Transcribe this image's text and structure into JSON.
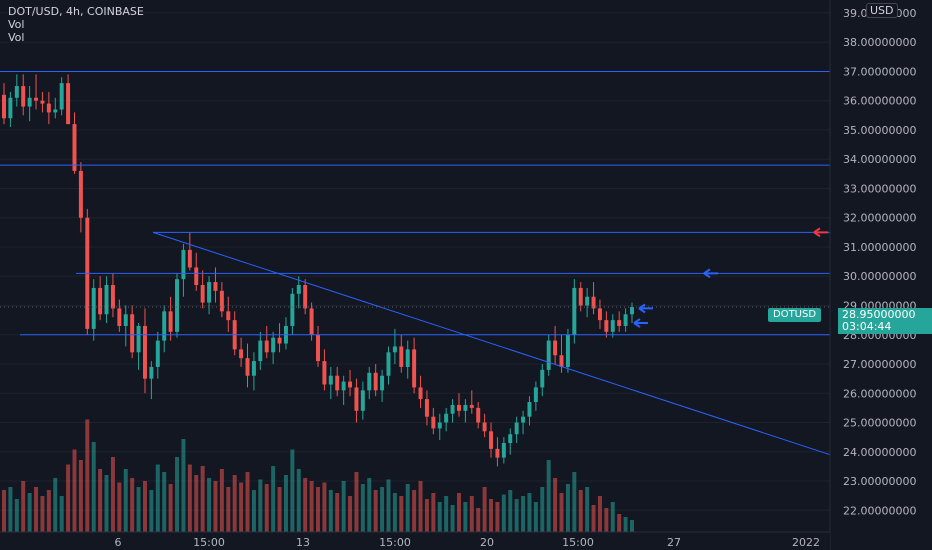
{
  "header": {
    "title": "DOT/USD, 4h, COINBASE",
    "indicator_1": "Vol",
    "indicator_2": "Vol",
    "currency_badge": "USD"
  },
  "price_label": {
    "symbol": "DOTUSD",
    "price": "28.95000000",
    "countdown": "03:04:44"
  },
  "colors": {
    "background": "#131722",
    "up": "#26a69a",
    "down": "#ef5350",
    "drawing": "#2962ff",
    "grid": "#1e222d",
    "text": "#b2b5be",
    "red_arrow": "#f23645"
  },
  "chart_data": {
    "type": "candlestick",
    "symbol": "DOT/USD",
    "interval": "4h",
    "exchange": "COINBASE",
    "y_axis": {
      "range": [
        21.6,
        39.1
      ],
      "ticks": [
        "39.00000000",
        "38.00000000",
        "37.00000000",
        "36.00000000",
        "35.00000000",
        "34.00000000",
        "33.00000000",
        "32.00000000",
        "31.00000000",
        "30.00000000",
        "29.00000000",
        "28.00000000",
        "27.00000000",
        "26.00000000",
        "25.00000000",
        "24.00000000",
        "23.00000000",
        "22.00000000"
      ]
    },
    "x_axis": {
      "ticks": [
        "6",
        "15:00",
        "13",
        "15:00",
        "20",
        "15:00",
        "27",
        "2022"
      ]
    },
    "candles": [
      [
        36.2,
        36.6,
        35.2,
        35.4
      ],
      [
        35.4,
        36.3,
        35.1,
        36.1
      ],
      [
        36.1,
        36.9,
        35.8,
        36.5
      ],
      [
        36.5,
        36.9,
        35.5,
        35.8
      ],
      [
        35.8,
        36.5,
        35.3,
        36.1
      ],
      [
        36.1,
        36.9,
        35.7,
        36.0
      ],
      [
        36.0,
        36.3,
        35.6,
        35.9
      ],
      [
        35.9,
        36.3,
        35.2,
        35.6
      ],
      [
        35.6,
        36.1,
        35.4,
        35.7
      ],
      [
        35.7,
        36.8,
        35.5,
        36.6
      ],
      [
        36.6,
        36.9,
        35.2,
        35.2
      ],
      [
        35.2,
        35.6,
        33.5,
        33.6
      ],
      [
        33.6,
        33.9,
        31.5,
        32.0
      ],
      [
        32.0,
        32.3,
        28.0,
        28.2
      ],
      [
        28.2,
        29.9,
        27.8,
        29.6
      ],
      [
        29.6,
        30.0,
        28.5,
        28.7
      ],
      [
        28.7,
        30.0,
        28.4,
        29.7
      ],
      [
        29.7,
        30.1,
        28.6,
        28.9
      ],
      [
        28.9,
        29.2,
        28.1,
        28.3
      ],
      [
        28.3,
        29.0,
        27.6,
        28.7
      ],
      [
        28.7,
        29.0,
        27.2,
        27.4
      ],
      [
        27.4,
        28.4,
        26.8,
        28.3
      ],
      [
        28.3,
        28.9,
        26.0,
        26.5
      ],
      [
        26.5,
        27.1,
        25.8,
        26.9
      ],
      [
        26.9,
        28.1,
        26.5,
        27.8
      ],
      [
        27.8,
        29.0,
        27.4,
        28.8
      ],
      [
        28.8,
        29.3,
        27.8,
        28.1
      ],
      [
        28.1,
        30.1,
        27.9,
        29.9
      ],
      [
        29.9,
        31.1,
        29.3,
        30.9
      ],
      [
        30.9,
        31.5,
        30.2,
        30.3
      ],
      [
        30.3,
        30.8,
        29.5,
        29.7
      ],
      [
        29.7,
        30.2,
        28.9,
        29.1
      ],
      [
        29.1,
        30.0,
        28.7,
        29.8
      ],
      [
        29.8,
        30.3,
        29.1,
        29.5
      ],
      [
        29.5,
        29.8,
        28.6,
        28.8
      ],
      [
        28.8,
        29.3,
        28.1,
        28.5
      ],
      [
        28.5,
        28.8,
        27.3,
        27.5
      ],
      [
        27.5,
        27.9,
        26.9,
        27.2
      ],
      [
        27.2,
        27.7,
        26.2,
        26.6
      ],
      [
        26.6,
        27.4,
        26.1,
        27.1
      ],
      [
        27.1,
        28.1,
        26.8,
        27.8
      ],
      [
        27.8,
        28.3,
        27.2,
        27.4
      ],
      [
        27.4,
        28.1,
        27.0,
        27.9
      ],
      [
        27.9,
        28.4,
        27.4,
        27.7
      ],
      [
        27.7,
        28.6,
        27.5,
        28.3
      ],
      [
        28.3,
        29.6,
        28.0,
        29.4
      ],
      [
        29.4,
        30.0,
        28.9,
        29.7
      ],
      [
        29.7,
        29.9,
        28.7,
        28.9
      ],
      [
        28.9,
        29.1,
        27.8,
        28.0
      ],
      [
        28.0,
        28.3,
        26.9,
        27.1
      ],
      [
        27.1,
        27.5,
        26.1,
        26.3
      ],
      [
        26.3,
        26.9,
        25.8,
        26.6
      ],
      [
        26.6,
        26.9,
        25.9,
        26.1
      ],
      [
        26.1,
        26.6,
        25.6,
        26.4
      ],
      [
        26.4,
        26.8,
        25.9,
        26.2
      ],
      [
        26.2,
        26.5,
        25.0,
        25.4
      ],
      [
        25.4,
        26.4,
        25.1,
        26.1
      ],
      [
        26.1,
        26.9,
        25.8,
        26.7
      ],
      [
        26.7,
        27.0,
        25.9,
        26.1
      ],
      [
        26.1,
        26.8,
        25.7,
        26.6
      ],
      [
        26.6,
        27.6,
        26.3,
        27.4
      ],
      [
        27.4,
        28.2,
        27.0,
        27.6
      ],
      [
        27.6,
        28.0,
        26.7,
        26.9
      ],
      [
        26.9,
        27.8,
        26.5,
        27.5
      ],
      [
        27.5,
        27.9,
        26.0,
        26.2
      ],
      [
        26.2,
        26.6,
        25.5,
        25.8
      ],
      [
        25.8,
        26.1,
        24.9,
        25.2
      ],
      [
        25.2,
        25.5,
        24.6,
        24.8
      ],
      [
        24.8,
        25.3,
        24.4,
        25.0
      ],
      [
        25.0,
        25.5,
        24.7,
        25.3
      ],
      [
        25.3,
        25.8,
        25.0,
        25.6
      ],
      [
        25.6,
        26.0,
        25.2,
        25.4
      ],
      [
        25.4,
        25.8,
        25.0,
        25.6
      ],
      [
        25.6,
        26.1,
        25.3,
        25.5
      ],
      [
        25.5,
        25.7,
        24.8,
        25.0
      ],
      [
        25.0,
        25.3,
        24.5,
        24.7
      ],
      [
        24.7,
        25.0,
        23.8,
        24.1
      ],
      [
        24.1,
        24.5,
        23.5,
        23.8
      ],
      [
        23.8,
        24.5,
        23.6,
        24.3
      ],
      [
        24.3,
        24.8,
        23.9,
        24.6
      ],
      [
        24.6,
        25.2,
        24.3,
        25.0
      ],
      [
        25.0,
        25.4,
        24.6,
        25.2
      ],
      [
        25.2,
        25.9,
        24.9,
        25.7
      ],
      [
        25.7,
        26.4,
        25.4,
        26.2
      ],
      [
        26.2,
        27.0,
        25.9,
        26.8
      ],
      [
        26.8,
        28.0,
        26.6,
        27.8
      ],
      [
        27.8,
        28.3,
        27.0,
        27.3
      ],
      [
        27.3,
        28.0,
        26.7,
        26.9
      ],
      [
        26.9,
        28.2,
        26.7,
        28.0
      ],
      [
        28.0,
        29.9,
        27.7,
        29.6
      ],
      [
        29.6,
        29.8,
        28.8,
        29.0
      ],
      [
        29.0,
        29.6,
        28.6,
        29.3
      ],
      [
        29.3,
        29.8,
        28.7,
        28.9
      ],
      [
        28.9,
        29.2,
        28.2,
        28.5
      ],
      [
        28.5,
        28.8,
        27.9,
        28.1
      ],
      [
        28.1,
        28.7,
        27.9,
        28.5
      ],
      [
        28.5,
        28.8,
        28.1,
        28.3
      ],
      [
        28.3,
        28.9,
        28.1,
        28.7
      ],
      [
        28.7,
        29.1,
        28.4,
        28.95
      ]
    ],
    "volume": [
      0.28,
      0.3,
      0.22,
      0.34,
      0.26,
      0.3,
      0.24,
      0.28,
      0.36,
      0.24,
      0.45,
      0.55,
      0.48,
      0.75,
      0.6,
      0.42,
      0.38,
      0.5,
      0.33,
      0.42,
      0.36,
      0.3,
      0.34,
      0.28,
      0.45,
      0.4,
      0.32,
      0.5,
      0.62,
      0.45,
      0.38,
      0.44,
      0.36,
      0.34,
      0.42,
      0.3,
      0.38,
      0.33,
      0.4,
      0.28,
      0.35,
      0.32,
      0.44,
      0.3,
      0.38,
      0.55,
      0.42,
      0.36,
      0.34,
      0.3,
      0.33,
      0.28,
      0.26,
      0.34,
      0.24,
      0.4,
      0.32,
      0.36,
      0.28,
      0.3,
      0.35,
      0.26,
      0.24,
      0.32,
      0.28,
      0.34,
      0.22,
      0.26,
      0.2,
      0.24,
      0.18,
      0.26,
      0.2,
      0.24,
      0.16,
      0.3,
      0.22,
      0.2,
      0.25,
      0.28,
      0.22,
      0.24,
      0.26,
      0.2,
      0.3,
      0.48,
      0.36,
      0.26,
      0.32,
      0.4,
      0.28,
      0.3,
      0.18,
      0.24,
      0.16,
      0.2,
      0.12,
      0.1,
      0.08
    ],
    "horizontal_levels": [
      37.0,
      33.8,
      31.5,
      30.1,
      28.0
    ],
    "trendline": {
      "from": [
        31.5
      ],
      "to": [
        23.9
      ]
    },
    "markers": [
      {
        "type": "arrow-left",
        "price": 31.5,
        "color": "red"
      },
      {
        "type": "arrow-left",
        "price": 30.1,
        "color": "blue"
      },
      {
        "type": "arrow-left",
        "price": 28.9,
        "color": "blue"
      },
      {
        "type": "arrow-left",
        "price": 28.4,
        "color": "blue"
      }
    ],
    "current_price": 28.95
  }
}
